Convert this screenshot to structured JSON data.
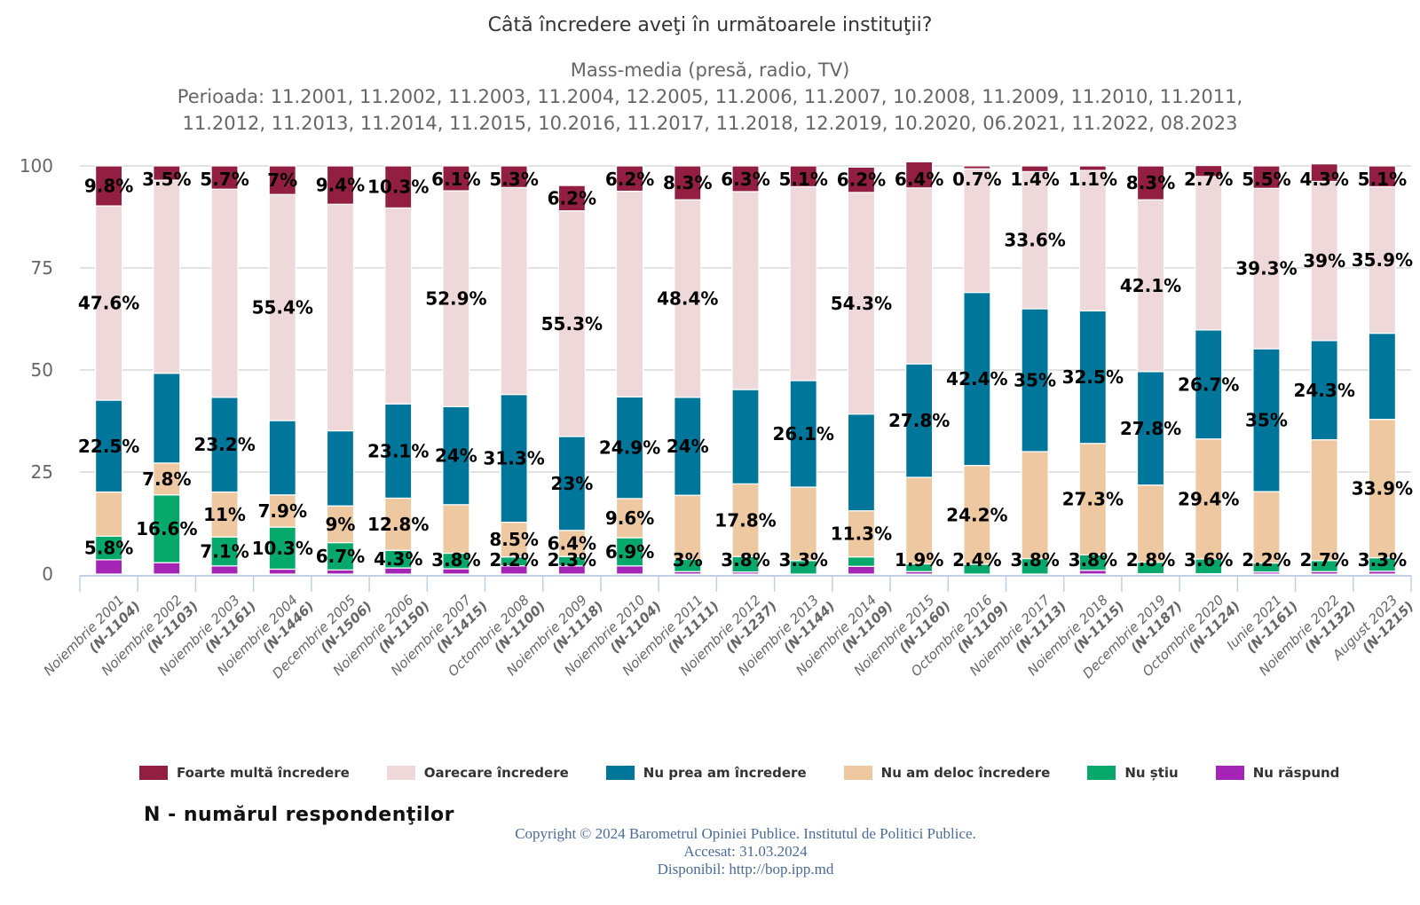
{
  "chart_data": {
    "type": "bar",
    "stacked": true,
    "title": "Câtă încredere aveţi în următoarele instituţii?",
    "subtitle_lines": [
      "Mass-media (presă, radio, TV)",
      "Perioada: 11.2001, 11.2002, 11.2003, 11.2004, 12.2005, 11.2006, 11.2007, 10.2008, 11.2009, 11.2010, 11.2011,",
      "11.2012, 11.2013, 11.2014, 11.2015, 10.2016, 11.2017, 11.2018, 12.2019, 10.2020, 06.2021, 11.2022, 08.2023"
    ],
    "xlabel": "",
    "ylabel": "",
    "ylim": [
      0,
      100
    ],
    "yticks": [
      0,
      25,
      50,
      75,
      100
    ],
    "grid": true,
    "legend_position": "bottom",
    "categories": [
      {
        "label": "Noiembrie 2001",
        "n": "(N-1104)"
      },
      {
        "label": "Noiembrie 2002",
        "n": "(N-1103)"
      },
      {
        "label": "Noiembrie 2003",
        "n": "(N-1161)"
      },
      {
        "label": "Noiembrie 2004",
        "n": "(N-1446)"
      },
      {
        "label": "Decembrie 2005",
        "n": "(N-1506)"
      },
      {
        "label": "Noiembrie 2006",
        "n": "(N-1150)"
      },
      {
        "label": "Noiembrie 2007",
        "n": "(N-1415)"
      },
      {
        "label": "Octombrie 2008",
        "n": "(N-1100)"
      },
      {
        "label": "Noiembrie 2009",
        "n": "(N-1118)"
      },
      {
        "label": "Noiembrie 2010",
        "n": "(N-1104)"
      },
      {
        "label": "Noiembrie 2011",
        "n": "(N-1111)"
      },
      {
        "label": "Noiembrie 2012",
        "n": "(N-1237)"
      },
      {
        "label": "Noiembrie 2013",
        "n": "(N-1144)"
      },
      {
        "label": "Noiembrie 2014",
        "n": "(N-1109)"
      },
      {
        "label": "Noiembrie 2015",
        "n": "(N-1160)"
      },
      {
        "label": "Octombrie 2016",
        "n": "(N-1109)"
      },
      {
        "label": "Noiembrie 2017",
        "n": "(N-1113)"
      },
      {
        "label": "Noiembrie 2018",
        "n": "(N-1115)"
      },
      {
        "label": "Decembrie 2019",
        "n": "(N-1187)"
      },
      {
        "label": "Octombrie 2020",
        "n": "(N-1124)"
      },
      {
        "label": "Iunie 2021",
        "n": "(N-1161)"
      },
      {
        "label": "Noiembrie 2022",
        "n": "(N-1132)"
      },
      {
        "label": "August 2023",
        "n": "(N-1215)"
      }
    ],
    "series": [
      {
        "name": "Nu răspund",
        "color": "#a425b5",
        "values": [
          3.5,
          2.8,
          2.0,
          1.2,
          1.0,
          1.5,
          1.3,
          2.0,
          2.0,
          2.0,
          0.6,
          0.5,
          0.0,
          1.9,
          0.6,
          0.0,
          0.0,
          0.9,
          0.1,
          0.1,
          0.5,
          0.6,
          0.7
        ],
        "labels": [
          null,
          null,
          null,
          null,
          null,
          null,
          null,
          null,
          null,
          null,
          null,
          null,
          null,
          null,
          null,
          null,
          null,
          null,
          null,
          null,
          null,
          null,
          null
        ]
      },
      {
        "name": "Nu știu",
        "color": "#06a86b",
        "values": [
          5.8,
          16.6,
          7.1,
          10.3,
          6.7,
          4.3,
          3.8,
          2.2,
          2.3,
          6.9,
          3.0,
          3.8,
          3.3,
          2.3,
          1.9,
          2.4,
          3.8,
          3.8,
          2.8,
          3.6,
          2.2,
          2.7,
          3.3
        ],
        "labels": [
          "5.8%",
          "16.6%",
          "7.1%",
          "10.3%",
          "6.7%",
          "4.3%",
          "3.8%",
          "2.2%",
          "2.3%",
          "6.9%",
          "3%",
          "3.8%",
          "3.3%",
          null,
          "1.9%",
          "2.4%",
          "3.8%",
          "3.8%",
          "2.8%",
          "3.6%",
          "2.2%",
          "2.7%",
          "3.3%"
        ]
      },
      {
        "name": "Nu am deloc încredere",
        "color": "#edc8a1",
        "values": [
          10.8,
          7.8,
          11.0,
          7.9,
          9.0,
          12.8,
          11.9,
          8.5,
          6.4,
          9.6,
          15.7,
          17.8,
          18.0,
          11.3,
          21.2,
          24.2,
          26.2,
          27.3,
          18.9,
          29.4,
          17.5,
          29.6,
          33.9
        ],
        "labels": [
          null,
          "7.8%",
          "11%",
          "7.9%",
          "9%",
          "12.8%",
          null,
          "8.5%",
          "6.4%",
          "9.6%",
          null,
          "17.8%",
          null,
          "11.3%",
          null,
          "24.2%",
          null,
          "27.3%",
          null,
          "29.4%",
          null,
          null,
          "33.9%"
        ]
      },
      {
        "name": "Nu prea am încredere",
        "color": "#00769a",
        "values": [
          22.5,
          22.0,
          23.2,
          18.2,
          18.4,
          23.1,
          24.0,
          31.3,
          23.0,
          24.9,
          24.0,
          23.1,
          26.1,
          23.7,
          27.8,
          42.4,
          35.0,
          32.5,
          27.8,
          26.7,
          35.0,
          24.3,
          21.1
        ],
        "labels": [
          "22.5%",
          null,
          "23.2%",
          null,
          null,
          "23.1%",
          "24%",
          "31.3%",
          "23%",
          "24.9%",
          "24%",
          null,
          "26.1%",
          null,
          "27.8%",
          "42.4%",
          "35%",
          "32.5%",
          "27.8%",
          "26.7%",
          "35%",
          "24.3%",
          null
        ]
      },
      {
        "name": "Oarecare încredere",
        "color": "#efd8da",
        "values": [
          47.6,
          47.3,
          51.0,
          55.4,
          55.5,
          48.0,
          52.9,
          50.7,
          55.3,
          50.4,
          48.4,
          48.5,
          47.5,
          54.3,
          43.1,
          30.3,
          33.6,
          34.4,
          42.1,
          37.6,
          39.3,
          39.0,
          35.9
        ],
        "labels": [
          "47.6%",
          null,
          null,
          "55.4%",
          null,
          null,
          "52.9%",
          null,
          "55.3%",
          null,
          "48.4%",
          null,
          null,
          "54.3%",
          null,
          null,
          "33.6%",
          null,
          "42.1%",
          null,
          "39.3%",
          "39%",
          "35.9%"
        ]
      },
      {
        "name": "Foarte multă încredere",
        "color": "#921f41",
        "values": [
          9.8,
          3.5,
          5.7,
          7.0,
          9.4,
          10.3,
          6.1,
          5.3,
          6.2,
          6.2,
          8.3,
          6.3,
          5.1,
          6.2,
          6.4,
          0.7,
          1.4,
          1.1,
          8.3,
          2.7,
          5.5,
          4.3,
          5.1
        ],
        "labels": [
          "9.8%",
          "3.5%",
          "5.7%",
          "7%",
          "9.4%",
          "10.3%",
          "6.1%",
          "5.3%",
          "6.2%",
          "6.2%",
          "8.3%",
          "6.3%",
          "5.1%",
          "6.2%",
          "6.4%",
          "0.7%",
          "1.4%",
          "1.1%",
          "8.3%",
          "2.7%",
          "5.5%",
          "4.3%",
          "5.1%"
        ]
      }
    ]
  },
  "legend": {
    "items": [
      {
        "label": "Foarte multă încredere",
        "color": "#921f41"
      },
      {
        "label": "Oarecare încredere",
        "color": "#efd8da"
      },
      {
        "label": "Nu prea am încredere",
        "color": "#00769a"
      },
      {
        "label": "Nu am deloc încredere",
        "color": "#edc8a1"
      },
      {
        "label": "Nu știu",
        "color": "#06a86b"
      },
      {
        "label": "Nu răspund",
        "color": "#a425b5"
      }
    ]
  },
  "note": "N - numărul respondenţilor",
  "credits": {
    "line1": "Copyright © 2024 Barometrul Opiniei Publice. Institutul de Politici Publice.",
    "line2": "Accesat: 31.03.2024",
    "line3": "Disponibil: http://bop.ipp.md"
  }
}
